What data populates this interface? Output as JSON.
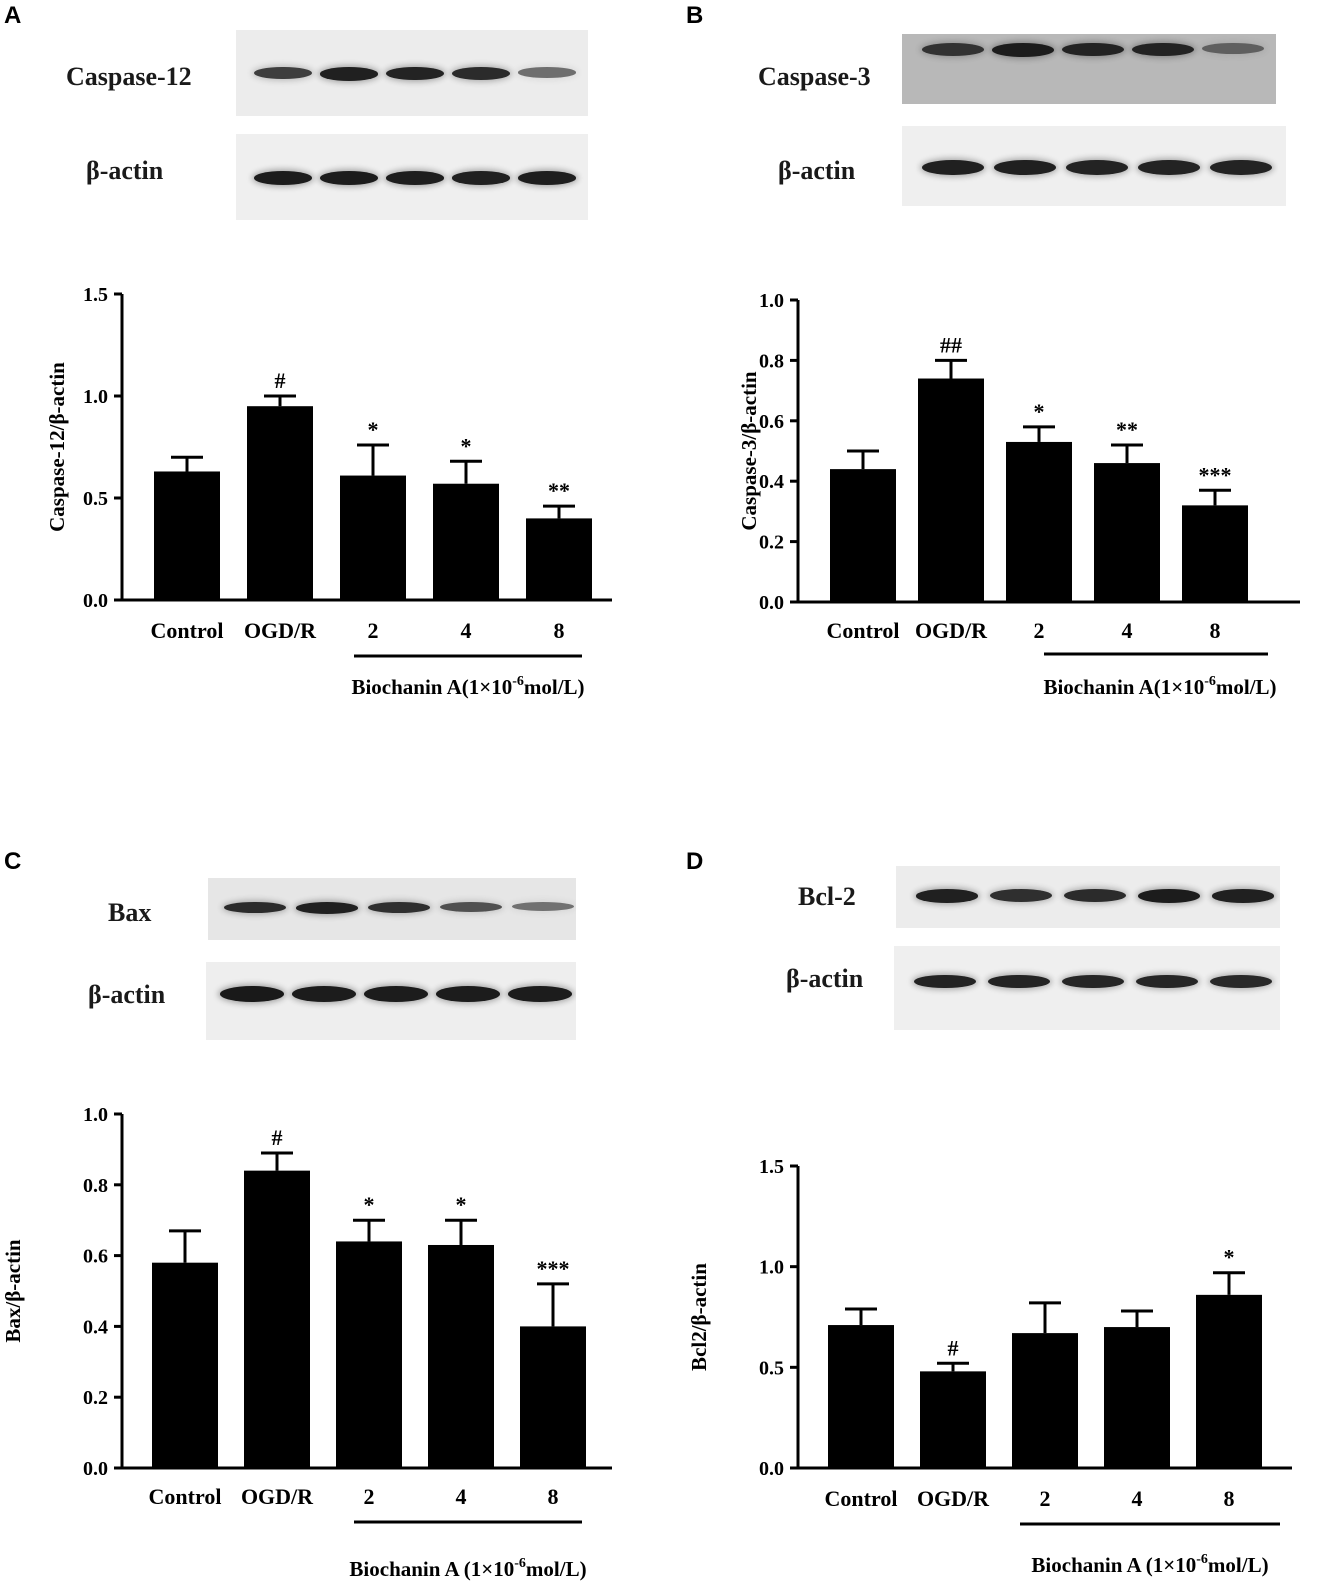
{
  "panels": [
    {
      "letter": "A",
      "blots": [
        {
          "label": "Caspase-12",
          "bg": "#ececec",
          "intensities": [
            0.72,
            0.92,
            0.9,
            0.85,
            0.4
          ]
        },
        {
          "label": "β-actin",
          "bg": "#efefef",
          "intensities": [
            0.95,
            0.95,
            0.93,
            0.92,
            0.93
          ]
        }
      ],
      "chart_data": {
        "type": "bar",
        "categories": [
          "Control",
          "OGD/R",
          "2",
          "4",
          "8"
        ],
        "values": [
          0.63,
          0.95,
          0.61,
          0.57,
          0.4
        ],
        "errors": [
          0.07,
          0.05,
          0.15,
          0.11,
          0.06
        ],
        "significance": [
          "",
          "#",
          "*",
          "*",
          "**"
        ],
        "ylabel": "Caspase-12/β-actin",
        "ylim": [
          0,
          1.5
        ],
        "yticks": [
          "0.0",
          "0.5",
          "1.0",
          "1.5"
        ],
        "group_label": "Biochanin A(1×10",
        "group_label_sup": "-6",
        "group_label_end": "mol/L)"
      }
    },
    {
      "letter": "B",
      "blots": [
        {
          "label": "Caspase-3",
          "bg": "#b8b8b8",
          "intensities": [
            0.8,
            0.95,
            0.9,
            0.9,
            0.5
          ]
        },
        {
          "label": "β-actin",
          "bg": "#efefef",
          "intensities": [
            0.92,
            0.92,
            0.9,
            0.9,
            0.9
          ]
        }
      ],
      "chart_data": {
        "type": "bar",
        "categories": [
          "Control",
          "OGD/R",
          "2",
          "4",
          "8"
        ],
        "values": [
          0.44,
          0.74,
          0.53,
          0.46,
          0.32
        ],
        "errors": [
          0.06,
          0.06,
          0.05,
          0.06,
          0.05
        ],
        "significance": [
          "",
          "##",
          "*",
          "**",
          "***"
        ],
        "ylabel": "Caspase-3/β-actin",
        "ylim": [
          0,
          1.0
        ],
        "yticks": [
          "0.0",
          "0.2",
          "0.4",
          "0.6",
          "0.8",
          "1.0"
        ],
        "group_label": "Biochanin A(1×10",
        "group_label_sup": "-6",
        "group_label_end": "mol/L)"
      }
    },
    {
      "letter": "C",
      "blots": [
        {
          "label": "Bax",
          "bg": "#e6e6e6",
          "intensities": [
            0.85,
            0.92,
            0.82,
            0.6,
            0.38
          ]
        },
        {
          "label": "β-actin",
          "bg": "#eeeeee",
          "intensities": [
            0.97,
            0.95,
            0.95,
            0.95,
            0.95
          ]
        }
      ],
      "chart_data": {
        "type": "bar",
        "categories": [
          "Control",
          "OGD/R",
          "2",
          "4",
          "8"
        ],
        "values": [
          0.58,
          0.84,
          0.64,
          0.63,
          0.4
        ],
        "errors": [
          0.09,
          0.05,
          0.06,
          0.07,
          0.12
        ],
        "significance": [
          "",
          "#",
          "*",
          "*",
          "***"
        ],
        "ylabel": "Bax/β-actin",
        "ylim": [
          0,
          1.0
        ],
        "yticks": [
          "0.0",
          "0.2",
          "0.4",
          "0.6",
          "0.8",
          "1.0"
        ],
        "group_label": "Biochanin A (1×10",
        "group_label_sup": "-6",
        "group_label_end": "mol/L)"
      }
    },
    {
      "letter": "D",
      "blots": [
        {
          "label": "Bcl-2",
          "bg": "#ececec",
          "intensities": [
            0.92,
            0.82,
            0.85,
            0.95,
            0.92
          ]
        },
        {
          "label": "β-actin",
          "bg": "#efefef",
          "intensities": [
            0.9,
            0.9,
            0.88,
            0.88,
            0.86
          ]
        }
      ],
      "chart_data": {
        "type": "bar",
        "categories": [
          "Control",
          "OGD/R",
          "2",
          "4",
          "8"
        ],
        "values": [
          0.71,
          0.48,
          0.67,
          0.7,
          0.86
        ],
        "errors": [
          0.08,
          0.04,
          0.15,
          0.08,
          0.11
        ],
        "significance": [
          "",
          "#",
          "",
          "",
          "*"
        ],
        "ylabel": "Bcl2/β-actin",
        "ylim": [
          0,
          1.5
        ],
        "yticks": [
          "0.0",
          "0.5",
          "1.0",
          "1.5"
        ],
        "group_label": "Biochanin A (1×10",
        "group_label_sup": "-6",
        "group_label_end": "mol/L)"
      }
    }
  ]
}
